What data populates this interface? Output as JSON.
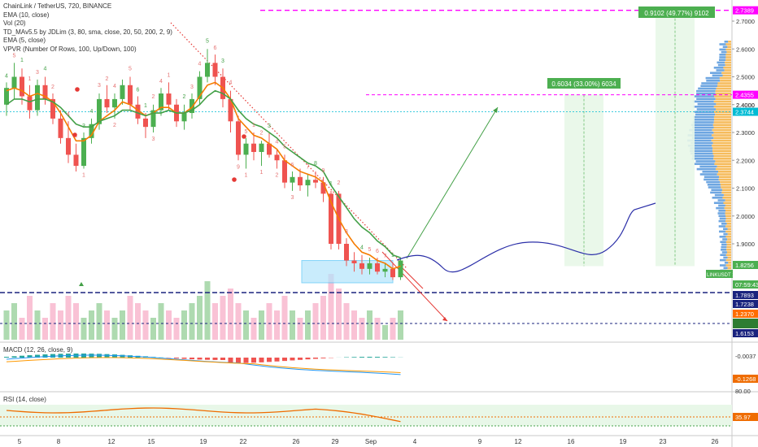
{
  "legend": [
    "ChainLink / TetherUS, 720, BINANCE",
    "EMA (10, close)",
    "Vol (20)",
    "TD_MAv5.5 by JDLim (3, 80, sma, close, 20, 50, 200, 2, 9)",
    "EMA (5, close)",
    "VPVR (Number Of Rows, 100, Up/Down, 100)"
  ],
  "macd_legend": "MACD (12, 26, close, 9)",
  "rsi_legend": "RSI (14, close)",
  "colors": {
    "up": "#26a69a",
    "up_candle": "#4caf50",
    "down": "#ef5350",
    "ema_fast": "#f57c00",
    "ema_slow": "#43a047",
    "magenta": "#ff00ff",
    "projection": "#2b2fa8",
    "hline_blue": "#1a237e",
    "cyan": "#00bcd4"
  },
  "chart_data": {
    "type": "candlestick",
    "symbol": "ChainLink / TetherUS",
    "interval": "720",
    "exchange": "BINANCE",
    "x_ticks": [
      "5",
      "8",
      "12",
      "15",
      "19",
      "22",
      "26",
      "29",
      "Sep",
      "4",
      "9",
      "12",
      "16",
      "19",
      "23",
      "26"
    ],
    "y_ticks": [
      "1.9000",
      "2.0000",
      "2.1000",
      "2.2000",
      "2.3000",
      "2.4000",
      "2.5000",
      "2.6000",
      "2.7000"
    ],
    "candles": [
      [
        2.4,
        2.48,
        2.36,
        2.46
      ],
      [
        2.46,
        2.55,
        2.42,
        2.5
      ],
      [
        2.5,
        2.53,
        2.4,
        2.43
      ],
      [
        2.43,
        2.47,
        2.35,
        2.38
      ],
      [
        2.38,
        2.49,
        2.36,
        2.47
      ],
      [
        2.47,
        2.5,
        2.4,
        2.42
      ],
      [
        2.42,
        2.44,
        2.33,
        2.35
      ],
      [
        2.35,
        2.38,
        2.26,
        2.28
      ],
      [
        2.28,
        2.34,
        2.19,
        2.22
      ],
      [
        2.22,
        2.26,
        2.16,
        2.18
      ],
      [
        2.18,
        2.3,
        2.17,
        2.28
      ],
      [
        2.28,
        2.35,
        2.26,
        2.33
      ],
      [
        2.33,
        2.44,
        2.31,
        2.42
      ],
      [
        2.42,
        2.47,
        2.37,
        2.39
      ],
      [
        2.39,
        2.44,
        2.35,
        2.42
      ],
      [
        2.42,
        2.49,
        2.4,
        2.47
      ],
      [
        2.47,
        2.5,
        2.38,
        2.4
      ],
      [
        2.4,
        2.43,
        2.33,
        2.35
      ],
      [
        2.35,
        2.37,
        2.28,
        2.32
      ],
      [
        2.32,
        2.4,
        2.3,
        2.38
      ],
      [
        2.38,
        2.46,
        2.36,
        2.44
      ],
      [
        2.44,
        2.48,
        2.38,
        2.4
      ],
      [
        2.4,
        2.42,
        2.32,
        2.34
      ],
      [
        2.34,
        2.4,
        2.31,
        2.37
      ],
      [
        2.37,
        2.44,
        2.35,
        2.42
      ],
      [
        2.42,
        2.52,
        2.4,
        2.5
      ],
      [
        2.5,
        2.6,
        2.48,
        2.55
      ],
      [
        2.55,
        2.58,
        2.47,
        2.5
      ],
      [
        2.5,
        2.53,
        2.39,
        2.42
      ],
      [
        2.42,
        2.45,
        2.3,
        2.34
      ],
      [
        2.34,
        2.36,
        2.2,
        2.22
      ],
      [
        2.22,
        2.28,
        2.17,
        2.26
      ],
      [
        2.26,
        2.3,
        2.2,
        2.23
      ],
      [
        2.23,
        2.27,
        2.18,
        2.26
      ],
      [
        2.26,
        2.3,
        2.21,
        2.22
      ],
      [
        2.22,
        2.24,
        2.17,
        2.2
      ],
      [
        2.2,
        2.22,
        2.1,
        2.12
      ],
      [
        2.12,
        2.16,
        2.09,
        2.14
      ],
      [
        2.14,
        2.17,
        2.09,
        2.11
      ],
      [
        2.11,
        2.15,
        2.07,
        2.13
      ],
      [
        2.13,
        2.16,
        2.1,
        2.12
      ],
      [
        2.12,
        2.14,
        2.05,
        2.08
      ],
      [
        2.08,
        2.09,
        1.88,
        1.9
      ],
      [
        2.08,
        2.09,
        1.88,
        1.9
      ],
      [
        1.9,
        1.92,
        1.82,
        1.84
      ],
      [
        1.84,
        1.87,
        1.8,
        1.83
      ],
      [
        1.83,
        1.86,
        1.79,
        1.81
      ],
      [
        1.81,
        1.85,
        1.79,
        1.83
      ],
      [
        1.83,
        1.85,
        1.79,
        1.8
      ],
      [
        1.8,
        1.83,
        1.78,
        1.81
      ],
      [
        1.81,
        1.83,
        1.77,
        1.78
      ],
      [
        1.78,
        1.85,
        1.77,
        1.84
      ]
    ],
    "volume": [
      4,
      5,
      3,
      6,
      4,
      3,
      5,
      4,
      6,
      5,
      3,
      4,
      5,
      4,
      3,
      4,
      6,
      5,
      4,
      3,
      5,
      4,
      3,
      4,
      5,
      6,
      8,
      5,
      6,
      7,
      5,
      4,
      3,
      4,
      5,
      4,
      6,
      4,
      3,
      4,
      5,
      6,
      9,
      7,
      5,
      4,
      3,
      4,
      3,
      2,
      3,
      4
    ],
    "volume_up": [
      true,
      true,
      false,
      false,
      true,
      false,
      false,
      false,
      false,
      false,
      true,
      true,
      true,
      false,
      true,
      true,
      false,
      false,
      false,
      true,
      true,
      false,
      false,
      true,
      true,
      true,
      true,
      false,
      false,
      false,
      false,
      true,
      false,
      true,
      false,
      false,
      false,
      true,
      false,
      true,
      false,
      false,
      false,
      false,
      false,
      false,
      false,
      true,
      false,
      true,
      false,
      true
    ],
    "ema_fast": [
      2.45,
      2.46,
      2.45,
      2.43,
      2.44,
      2.43,
      2.41,
      2.37,
      2.32,
      2.27,
      2.27,
      2.29,
      2.34,
      2.36,
      2.38,
      2.41,
      2.4,
      2.38,
      2.36,
      2.37,
      2.39,
      2.39,
      2.37,
      2.37,
      2.39,
      2.43,
      2.47,
      2.48,
      2.46,
      2.42,
      2.35,
      2.32,
      2.29,
      2.28,
      2.26,
      2.24,
      2.2,
      2.18,
      2.16,
      2.15,
      2.14,
      2.12,
      2.05,
      1.99,
      1.94,
      1.9,
      1.87,
      1.86,
      1.84,
      1.83,
      1.81,
      1.82
    ],
    "ema_slow": [
      2.4,
      2.42,
      2.42,
      2.41,
      2.42,
      2.42,
      2.41,
      2.39,
      2.36,
      2.33,
      2.32,
      2.32,
      2.34,
      2.35,
      2.36,
      2.38,
      2.38,
      2.37,
      2.36,
      2.37,
      2.37,
      2.38,
      2.37,
      2.37,
      2.38,
      2.4,
      2.43,
      2.45,
      2.44,
      2.42,
      2.38,
      2.35,
      2.33,
      2.32,
      2.3,
      2.28,
      2.25,
      2.23,
      2.21,
      2.19,
      2.18,
      2.16,
      2.11,
      2.07,
      2.03,
      1.99,
      1.96,
      1.94,
      1.91,
      1.89,
      1.86,
      1.85
    ],
    "projection_path": [
      [
        1.834,
        1.82
      ],
      [
        1.834,
        1.83
      ],
      [
        1.87,
        1.8
      ],
      [
        1.9,
        1.82
      ],
      [
        1.86,
        1.87
      ],
      [
        1.82,
        1.92
      ],
      [
        1.96,
        1.99
      ],
      [
        2.046,
        2.04
      ]
    ],
    "levels": {
      "top_dashed": 2.7389,
      "mid_dashed": 2.4355,
      "cyan_dotted": 2.3744,
      "blue_dashed_upper": 1.7893,
      "blue_dashed_lower": 1.6153
    },
    "measure_boxes": [
      {
        "label": "0.6034 (33.00%) 6034"
      },
      {
        "label": "0.9102 (49.77%) 9102"
      }
    ]
  },
  "price_labels": {
    "top": "2.7389",
    "mid": "2.4355",
    "ln1": "2.4000",
    "cyan": "2.3744",
    "current": "1.8256",
    "ticker": "LINKUSDT 1.8244",
    "countdown": "07:59:43",
    "upper_blue": "1.7893",
    "green_blank": "",
    "low1": "1.7238",
    "low2": "1.2370",
    "bottom_blue": "1.6153"
  },
  "macd": {
    "ticks": [
      "-0.0037",
      "-0.1268"
    ]
  },
  "rsi": {
    "ticks": [
      "80.00",
      "35.97"
    ]
  },
  "td_counts": {
    "top": [
      "4",
      "5",
      "1",
      "1",
      "3",
      "4",
      "2",
      "4",
      "1",
      "3",
      "4",
      "3",
      "2",
      "4",
      "5",
      "6",
      "1",
      "2",
      "4",
      "1",
      "2",
      "3",
      "4",
      "5",
      "6",
      "3",
      "4",
      "5",
      "1",
      "2",
      "3",
      "4",
      "5",
      "6",
      "7",
      "8",
      "9",
      "1",
      "2",
      "3",
      "4",
      "5",
      "6",
      "7",
      "1"
    ],
    "bottom": [
      "1",
      "2",
      "3",
      "9",
      "1",
      "1",
      "2",
      "3"
    ]
  }
}
